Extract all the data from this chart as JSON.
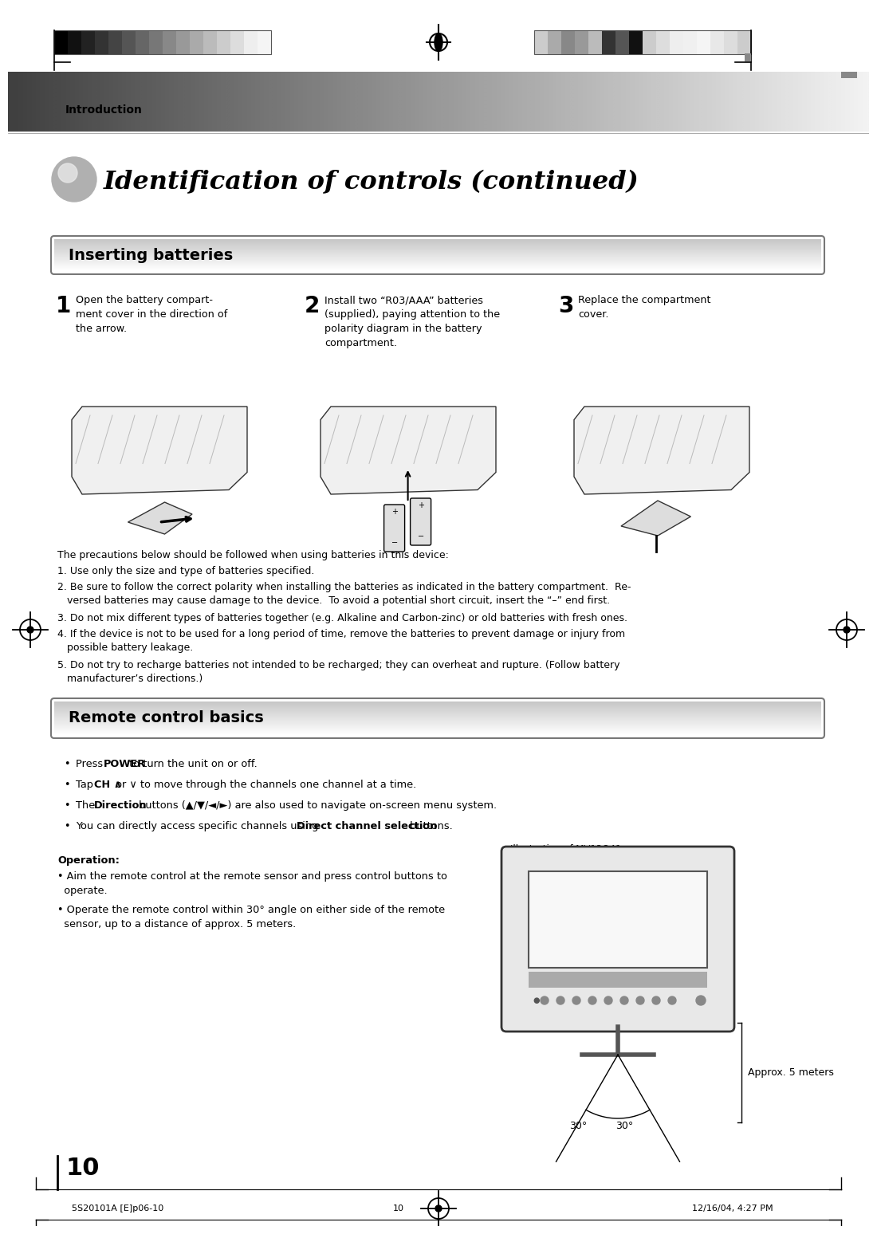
{
  "page_bg": "#ffffff",
  "header_text": "Introduction",
  "title_text": "Identification of controls (continued)",
  "section1_title": "Inserting batteries",
  "section2_title": "Remote control basics",
  "step1_num": "1",
  "step1_text": "Open the battery compart-\nment cover in the direction of\nthe arrow.",
  "step2_num": "2",
  "step2_text": "Install two “R03/AAA” batteries\n(supplied), paying attention to the\npolarity diagram in the battery\ncompartment.",
  "step3_num": "3",
  "step3_text": "Replace the compartment\ncover.",
  "precautions_intro": "The precautions below should be followed when using batteries in this device:",
  "precautions": [
    "1. Use only the size and type of batteries specified.",
    "2. Be sure to follow the correct polarity when installing the batteries as indicated in the battery compartment.  Re-\n   versed batteries may cause damage to the device.  To avoid a potential short circuit, insert the “–” end first.",
    "3. Do not mix different types of batteries together (e.g. Alkaline and Carbon-zinc) or old batteries with fresh ones.",
    "4. If the device is not to be used for a long period of time, remove the batteries to prevent damage or injury from\n   possible battery leakage.",
    "5. Do not try to recharge batteries not intended to be recharged; they can overheat and rupture. (Follow battery\n   manufacturer’s directions.)"
  ],
  "operation_title": "Operation:",
  "operation_line1": "• Aim the remote control at the remote sensor and press control buttons to\n  operate.",
  "operation_line2": "• Operate the remote control within 30° angle on either side of the remote\n  sensor, up to a distance of approx. 5 meters.",
  "illustration_label": "Illustration of MV13Q41",
  "approx_label": "Approx. 5 meters",
  "angle_label1": "30°",
  "angle_label2": "30°",
  "page_number": "10",
  "footer_left": "5S20101A [E]p06-10",
  "footer_center": "10",
  "footer_right": "12/16/04, 4:27 PM",
  "bar_colors_left": [
    "#000000",
    "#111111",
    "#222222",
    "#333333",
    "#444444",
    "#555555",
    "#666666",
    "#777777",
    "#888888",
    "#999999",
    "#aaaaaa",
    "#bbbbbb",
    "#cccccc",
    "#dddddd",
    "#eeeeee",
    "#f5f5f5"
  ],
  "bar_colors_right": [
    "#cccccc",
    "#aaaaaa",
    "#888888",
    "#999999",
    "#bbbbbb",
    "#333333",
    "#555555",
    "#111111",
    "#cccccc",
    "#dddddd",
    "#eeeeee",
    "#f0f0f0",
    "#f5f5f5",
    "#e8e8e8",
    "#dddddd",
    "#cccccc"
  ]
}
